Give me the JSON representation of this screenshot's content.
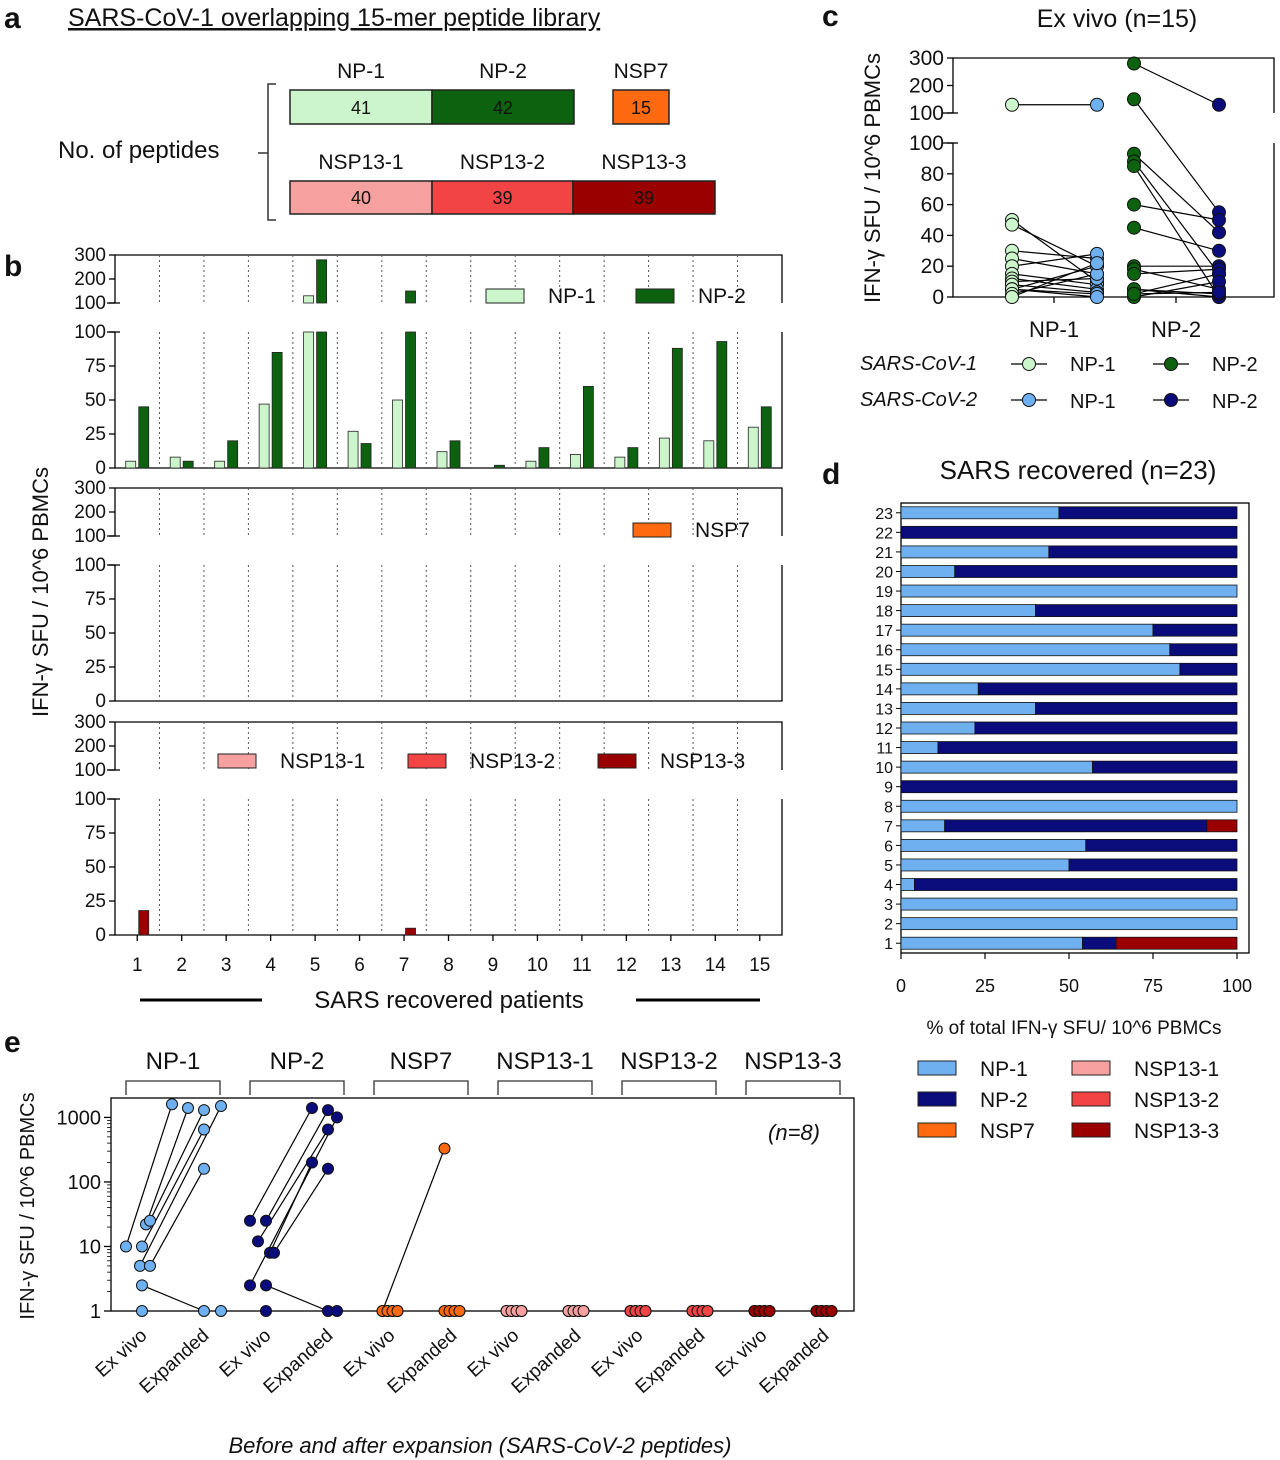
{
  "colors": {
    "np1_s1": "#ccf5cc",
    "np2_s1": "#0d620f",
    "nsp7": "#ff6a10",
    "nsp13_1": "#f7a0a0",
    "nsp13_2": "#f24345",
    "nsp13_3": "#9b0000",
    "np1_s2": "#6fb0f0",
    "np2_s2": "#0b0c7c",
    "grid": "#555555"
  },
  "panel_a": {
    "letter": "a",
    "title": "SARS-CoV-1 overlapping 15-mer peptide library",
    "row_label": "No. of peptides",
    "row1": [
      {
        "name": "NP-1",
        "count": "41"
      },
      {
        "name": "NP-2",
        "count": "42"
      },
      {
        "name": "NSP7",
        "count": "15"
      }
    ],
    "row2": [
      {
        "name": "NSP13-1",
        "count": "40"
      },
      {
        "name": "NSP13-2",
        "count": "39"
      },
      {
        "name": "NSP13-3",
        "count": "39"
      }
    ]
  },
  "panel_b": {
    "letter": "b",
    "ylabel": "IFN-γ SFU / 10^6 PBMCs",
    "xlabel": "SARS recovered patients",
    "legend_np1": "NP-1",
    "legend_np2": "NP-2",
    "legend_nsp7": "NSP7",
    "legend_nsp13_1": "NSP13-1",
    "legend_nsp13_2": "NSP13-2",
    "legend_nsp13_3": "NSP13-3"
  },
  "panel_c": {
    "letter": "c",
    "title": "Ex vivo (n=15)",
    "ylabel": "IFN-γ SFU / 10^6 PBMCs",
    "xcat1": "NP-1",
    "xcat2": "NP-2",
    "legend_cov1": "SARS-CoV-1",
    "legend_cov2": "SARS-CoV-2",
    "legend_np1": "NP-1",
    "legend_np2": "NP-2"
  },
  "panel_d": {
    "letter": "d",
    "title": "SARS recovered (n=23)",
    "xlabel": "% of total IFN-γ SFU/ 10^6 PBMCs",
    "legend": [
      "NP-1",
      "NP-2",
      "NSP7",
      "NSP13-1",
      "NSP13-2",
      "NSP13-3"
    ]
  },
  "panel_e": {
    "letter": "e",
    "ylabel": "IFN-γ SFU / 10^6 PBMCs",
    "xlabel": "Before and after expansion (SARS-CoV-2 peptides)",
    "n_label": "(n=8)",
    "groups": [
      "NP-1",
      "NP-2",
      "NSP7",
      "NSP13-1",
      "NSP13-2",
      "NSP13-3"
    ],
    "tick_exvivo": "Ex vivo",
    "tick_expanded": "Expanded"
  },
  "chart_data": [
    {
      "panel": "b",
      "type": "bar",
      "categories": [
        "1",
        "2",
        "3",
        "4",
        "5",
        "6",
        "7",
        "8",
        "9",
        "10",
        "11",
        "12",
        "13",
        "14",
        "15"
      ],
      "ylim": [
        0,
        300
      ],
      "yticks_lower": [
        "0",
        "25",
        "50",
        "75",
        "100"
      ],
      "yticks_upper": [
        "100",
        "200",
        "300"
      ],
      "series": [
        {
          "name": "NP-1",
          "values": [
            5,
            8,
            5,
            47,
            130,
            27,
            50,
            12,
            0,
            5,
            10,
            8,
            22,
            20,
            30
          ]
        },
        {
          "name": "NP-2",
          "values": [
            45,
            5,
            20,
            85,
            280,
            18,
            150,
            20,
            2,
            15,
            60,
            15,
            88,
            93,
            45
          ]
        },
        {
          "name": "NSP7",
          "values": [
            0,
            0,
            0,
            0,
            0,
            0,
            0,
            0,
            0,
            0,
            0,
            0,
            0,
            0,
            0
          ]
        },
        {
          "name": "NSP13-1",
          "values": [
            0,
            0,
            0,
            0,
            0,
            0,
            0,
            0,
            0,
            0,
            0,
            0,
            0,
            0,
            0
          ]
        },
        {
          "name": "NSP13-2",
          "values": [
            0,
            0,
            0,
            0,
            0,
            0,
            0,
            0,
            0,
            0,
            0,
            0,
            0,
            0,
            0
          ]
        },
        {
          "name": "NSP13-3",
          "values": [
            18,
            0,
            0,
            0,
            0,
            0,
            5,
            0,
            0,
            0,
            0,
            0,
            0,
            0,
            0
          ]
        }
      ]
    },
    {
      "panel": "c",
      "type": "scatter",
      "categories": [
        "NP-1",
        "NP-2"
      ],
      "yticks_lower": [
        "0",
        "20",
        "40",
        "60",
        "80",
        "100"
      ],
      "yticks_upper": [
        "100",
        "200",
        "300"
      ],
      "pairs": [
        {
          "name": "NP-1",
          "cov1": [
            130,
            50,
            47,
            30,
            25,
            20,
            15,
            12,
            10,
            8,
            5,
            5,
            5,
            2,
            0
          ],
          "cov2": [
            130,
            10,
            20,
            25,
            15,
            28,
            8,
            5,
            12,
            3,
            20,
            2,
            0,
            15,
            22
          ]
        },
        {
          "name": "NP-2",
          "cov1": [
            280,
            150,
            93,
            88,
            85,
            60,
            45,
            20,
            18,
            15,
            5,
            5,
            2,
            0,
            2
          ],
          "cov2": [
            130,
            55,
            42,
            15,
            0,
            50,
            30,
            20,
            5,
            18,
            0,
            2,
            15,
            10,
            3
          ]
        }
      ]
    },
    {
      "panel": "d",
      "type": "bar",
      "orientation": "horizontal-stacked",
      "categories": [
        "1",
        "2",
        "3",
        "4",
        "5",
        "6",
        "7",
        "8",
        "9",
        "10",
        "11",
        "12",
        "13",
        "14",
        "15",
        "16",
        "17",
        "18",
        "19",
        "20",
        "21",
        "22",
        "23"
      ],
      "xlim": [
        0,
        100
      ],
      "xticks": [
        "0",
        "25",
        "50",
        "75",
        "100"
      ],
      "series": [
        {
          "name": "NP-1",
          "values": [
            54,
            100,
            100,
            4,
            50,
            55,
            13,
            100,
            0,
            57,
            11,
            22,
            40,
            23,
            83,
            80,
            75,
            40,
            100,
            16,
            44,
            0,
            47
          ]
        },
        {
          "name": "NP-2",
          "values": [
            10,
            0,
            0,
            96,
            50,
            45,
            78,
            0,
            100,
            43,
            89,
            78,
            60,
            77,
            17,
            20,
            25,
            60,
            0,
            84,
            56,
            100,
            53
          ]
        },
        {
          "name": "NSP7",
          "values": [
            0,
            0,
            0,
            0,
            0,
            0,
            0,
            0,
            0,
            0,
            0,
            0,
            0,
            0,
            0,
            0,
            0,
            0,
            0,
            0,
            0,
            0,
            0
          ]
        },
        {
          "name": "NSP13-1",
          "values": [
            0,
            0,
            0,
            0,
            0,
            0,
            0,
            0,
            0,
            0,
            0,
            0,
            0,
            0,
            0,
            0,
            0,
            0,
            0,
            0,
            0,
            0,
            0
          ]
        },
        {
          "name": "NSP13-2",
          "values": [
            0,
            0,
            0,
            0,
            0,
            0,
            0,
            0,
            0,
            0,
            0,
            0,
            0,
            0,
            0,
            0,
            0,
            0,
            0,
            0,
            0,
            0,
            0
          ]
        },
        {
          "name": "NSP13-3",
          "values": [
            36,
            0,
            0,
            0,
            0,
            0,
            9,
            0,
            0,
            0,
            0,
            0,
            0,
            0,
            0,
            0,
            0,
            0,
            0,
            0,
            0,
            0,
            0
          ]
        }
      ]
    },
    {
      "panel": "e",
      "type": "scatter",
      "yscale": "log",
      "ylim": [
        1,
        2000
      ],
      "yticks": [
        "1",
        "10",
        "100",
        "1000"
      ],
      "groups": [
        {
          "name": "NP-1",
          "exvivo": [
            10,
            22,
            25,
            10,
            5,
            5,
            2.5,
            1
          ],
          "expanded": [
            1600,
            1400,
            1300,
            650,
            1500,
            160,
            1,
            1
          ]
        },
        {
          "name": "NP-2",
          "exvivo": [
            25,
            12,
            25,
            2.5,
            8,
            8,
            2.5,
            1
          ],
          "expanded": [
            1400,
            650,
            1300,
            1000,
            200,
            160,
            1,
            1
          ]
        },
        {
          "name": "NSP7",
          "exvivo": [
            1,
            1,
            1,
            1,
            1,
            1,
            1,
            1
          ],
          "expanded": [
            330,
            1,
            1,
            1,
            1,
            1,
            1,
            1
          ]
        },
        {
          "name": "NSP13-1",
          "exvivo": [
            1,
            1,
            1,
            1,
            1,
            1,
            1,
            1
          ],
          "expanded": [
            1,
            1,
            1,
            1,
            1,
            1,
            1,
            1
          ]
        },
        {
          "name": "NSP13-2",
          "exvivo": [
            1,
            1,
            1,
            1,
            1,
            1,
            1,
            1
          ],
          "expanded": [
            1,
            1,
            1,
            1,
            1,
            1,
            1,
            1
          ]
        },
        {
          "name": "NSP13-3",
          "exvivo": [
            1,
            1,
            1,
            1,
            1,
            1,
            1,
            1
          ],
          "expanded": [
            1,
            1,
            1,
            1,
            1,
            1,
            1,
            1
          ]
        }
      ]
    }
  ]
}
